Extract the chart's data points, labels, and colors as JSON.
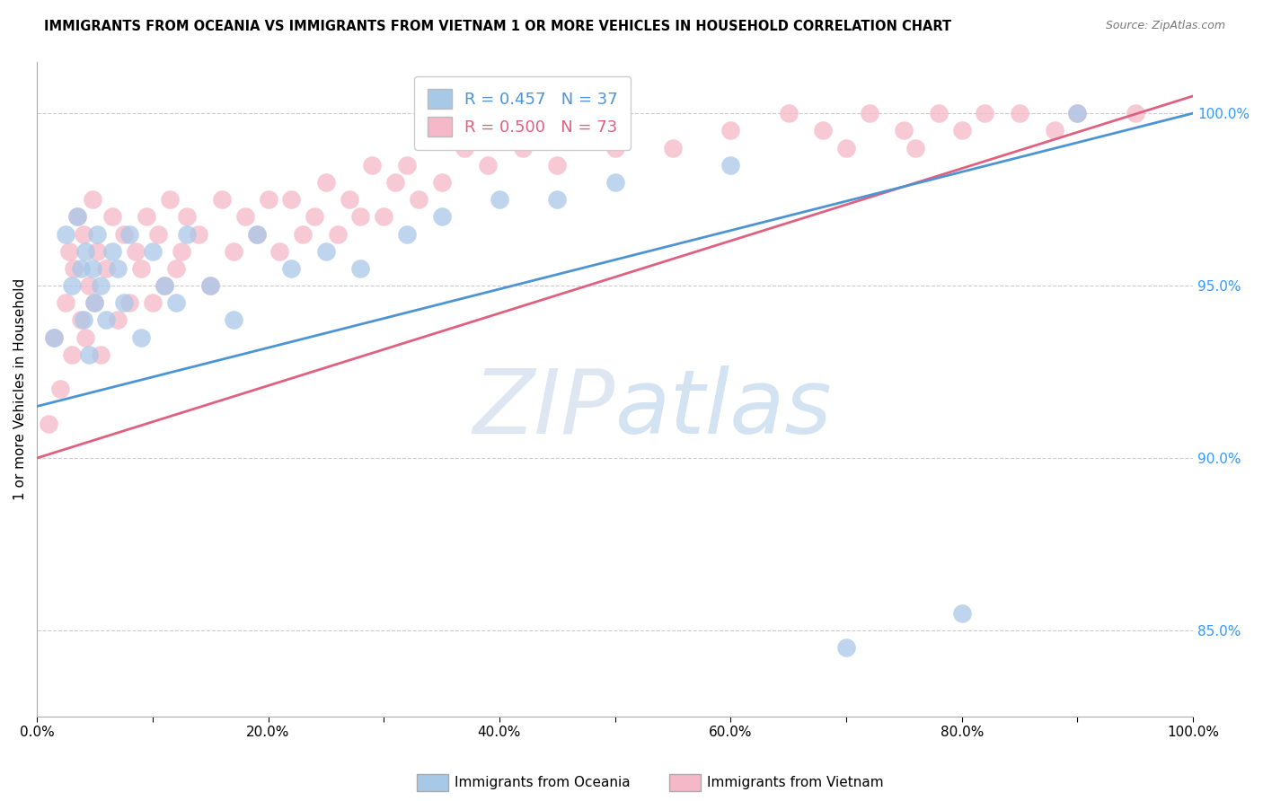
{
  "title": "IMMIGRANTS FROM OCEANIA VS IMMIGRANTS FROM VIETNAM 1 OR MORE VEHICLES IN HOUSEHOLD CORRELATION CHART",
  "source": "Source: ZipAtlas.com",
  "ylabel": "1 or more Vehicles in Household",
  "xlim": [
    0,
    100
  ],
  "ylim": [
    82.5,
    101.5
  ],
  "yticks": [
    85,
    90,
    95,
    100
  ],
  "xticks": [
    0,
    10,
    20,
    30,
    40,
    50,
    60,
    70,
    80,
    90,
    100
  ],
  "xtick_labels": [
    "0.0%",
    "",
    "20.0%",
    "",
    "40.0%",
    "",
    "60.0%",
    "",
    "80.0%",
    "",
    "100.0%"
  ],
  "ytick_labels": [
    "85.0%",
    "90.0%",
    "95.0%",
    "100.0%"
  ],
  "oceania_R": 0.457,
  "oceania_N": 37,
  "vietnam_R": 0.5,
  "vietnam_N": 73,
  "oceania_color": "#a8c8e8",
  "vietnam_color": "#f5b8c8",
  "oceania_line_color": "#4d94d5",
  "vietnam_line_color": "#e06080",
  "background_color": "#ffffff",
  "oceania_x": [
    1.5,
    2.5,
    3.0,
    3.5,
    3.8,
    4.0,
    4.2,
    4.5,
    4.8,
    5.0,
    5.2,
    5.5,
    6.0,
    6.5,
    7.0,
    7.5,
    8.0,
    9.0,
    10.0,
    11.0,
    12.0,
    13.0,
    15.0,
    17.0,
    19.0,
    22.0,
    25.0,
    28.0,
    32.0,
    35.0,
    40.0,
    45.0,
    50.0,
    60.0,
    70.0,
    80.0,
    90.0
  ],
  "oceania_y": [
    93.5,
    96.5,
    95.0,
    97.0,
    95.5,
    94.0,
    96.0,
    93.0,
    95.5,
    94.5,
    96.5,
    95.0,
    94.0,
    96.0,
    95.5,
    94.5,
    96.5,
    93.5,
    96.0,
    95.0,
    94.5,
    96.5,
    95.0,
    94.0,
    96.5,
    95.5,
    96.0,
    95.5,
    96.5,
    97.0,
    97.5,
    97.5,
    98.0,
    98.5,
    84.5,
    85.5,
    100.0
  ],
  "vietnam_x": [
    1.0,
    1.5,
    2.0,
    2.5,
    2.8,
    3.0,
    3.2,
    3.5,
    3.8,
    4.0,
    4.2,
    4.5,
    4.8,
    5.0,
    5.2,
    5.5,
    6.0,
    6.5,
    7.0,
    7.5,
    8.0,
    8.5,
    9.0,
    9.5,
    10.0,
    10.5,
    11.0,
    11.5,
    12.0,
    12.5,
    13.0,
    14.0,
    15.0,
    16.0,
    17.0,
    18.0,
    19.0,
    20.0,
    21.0,
    22.0,
    23.0,
    24.0,
    25.0,
    26.0,
    27.0,
    28.0,
    29.0,
    30.0,
    31.0,
    32.0,
    33.0,
    35.0,
    37.0,
    39.0,
    42.0,
    45.0,
    48.0,
    50.0,
    55.0,
    60.0,
    65.0,
    68.0,
    70.0,
    72.0,
    75.0,
    76.0,
    78.0,
    80.0,
    82.0,
    85.0,
    88.0,
    90.0,
    95.0
  ],
  "vietnam_y": [
    91.0,
    93.5,
    92.0,
    94.5,
    96.0,
    93.0,
    95.5,
    97.0,
    94.0,
    96.5,
    93.5,
    95.0,
    97.5,
    94.5,
    96.0,
    93.0,
    95.5,
    97.0,
    94.0,
    96.5,
    94.5,
    96.0,
    95.5,
    97.0,
    94.5,
    96.5,
    95.0,
    97.5,
    95.5,
    96.0,
    97.0,
    96.5,
    95.0,
    97.5,
    96.0,
    97.0,
    96.5,
    97.5,
    96.0,
    97.5,
    96.5,
    97.0,
    98.0,
    96.5,
    97.5,
    97.0,
    98.5,
    97.0,
    98.0,
    98.5,
    97.5,
    98.0,
    99.0,
    98.5,
    99.0,
    98.5,
    99.5,
    99.0,
    99.0,
    99.5,
    100.0,
    99.5,
    99.0,
    100.0,
    99.5,
    99.0,
    100.0,
    99.5,
    100.0,
    100.0,
    99.5,
    100.0,
    100.0
  ],
  "line_oce_x0": 0,
  "line_oce_y0": 91.5,
  "line_oce_x1": 100,
  "line_oce_y1": 100.0,
  "line_vie_x0": 0,
  "line_vie_y0": 90.0,
  "line_vie_x1": 100,
  "line_vie_y1": 100.5
}
